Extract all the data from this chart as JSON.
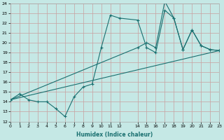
{
  "xlabel": "Humidex (Indice chaleur)",
  "bg_color": "#c5e8e5",
  "grid_color": "#c8a0a0",
  "line_color": "#1a7070",
  "xlim": [
    0,
    23
  ],
  "ylim": [
    12,
    24
  ],
  "xticks": [
    0,
    1,
    2,
    3,
    4,
    5,
    6,
    7,
    8,
    9,
    10,
    11,
    12,
    14,
    15,
    16,
    17,
    18,
    19,
    20,
    21,
    22,
    23
  ],
  "yticks": [
    12,
    13,
    14,
    15,
    16,
    17,
    18,
    19,
    20,
    21,
    22,
    23,
    24
  ],
  "line1_x": [
    0,
    1,
    2,
    3,
    4,
    5,
    6,
    7,
    8,
    9,
    10,
    11,
    12,
    14,
    15,
    16,
    17,
    18,
    19,
    20,
    21,
    22,
    23
  ],
  "line1_y": [
    14.2,
    14.8,
    14.2,
    14.0,
    14.0,
    13.3,
    12.5,
    14.5,
    15.5,
    15.8,
    19.5,
    22.8,
    22.5,
    22.3,
    19.5,
    19.0,
    23.3,
    22.5,
    19.3,
    21.3,
    19.7,
    19.3,
    19.2
  ],
  "line2_x": [
    0,
    14,
    15,
    16,
    17,
    18,
    19,
    20,
    21,
    22,
    23
  ],
  "line2_y": [
    14.2,
    19.5,
    20.0,
    19.5,
    24.2,
    22.5,
    19.3,
    21.3,
    19.7,
    19.3,
    19.2
  ],
  "line3_x": [
    0,
    23
  ],
  "line3_y": [
    14.2,
    19.2
  ]
}
